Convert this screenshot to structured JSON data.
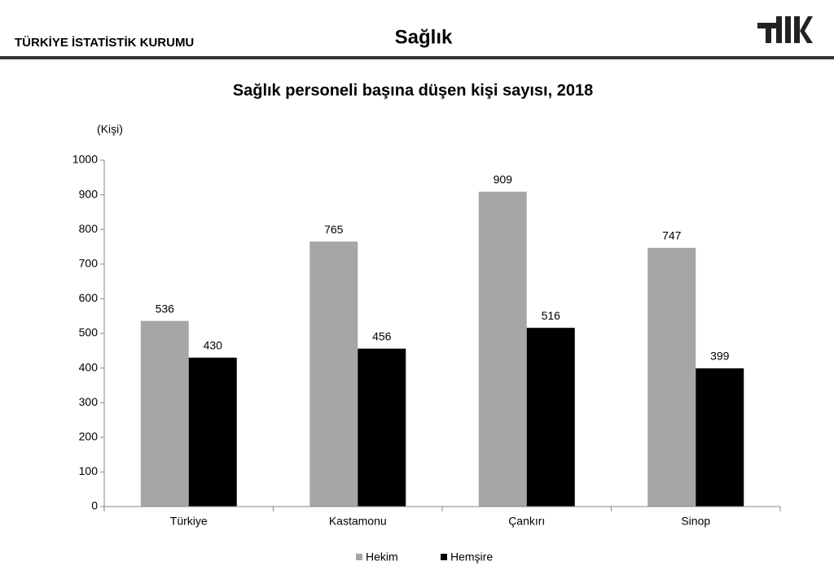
{
  "header": {
    "institution": "TÜRKİYE İSTATİSTİK KURUMU",
    "section": "Sağlık"
  },
  "chart_data": {
    "type": "bar",
    "title": "Sağlık personeli başına düşen kişi sayısı, 2018",
    "y_label": "(Kişi)",
    "categories": [
      "Türkiye",
      "Kastamonu",
      "Çankırı",
      "Sinop"
    ],
    "series": [
      {
        "name": "Hekim",
        "color": "#a6a6a6",
        "values": [
          536,
          765,
          909,
          747
        ]
      },
      {
        "name": "Hemşire",
        "color": "#000000",
        "values": [
          430,
          456,
          516,
          399
        ]
      }
    ],
    "ylim": [
      0,
      1000
    ],
    "yticks": [
      0,
      100,
      200,
      300,
      400,
      500,
      600,
      700,
      800,
      900,
      1000
    ],
    "grid": false,
    "legend": "bottom"
  }
}
